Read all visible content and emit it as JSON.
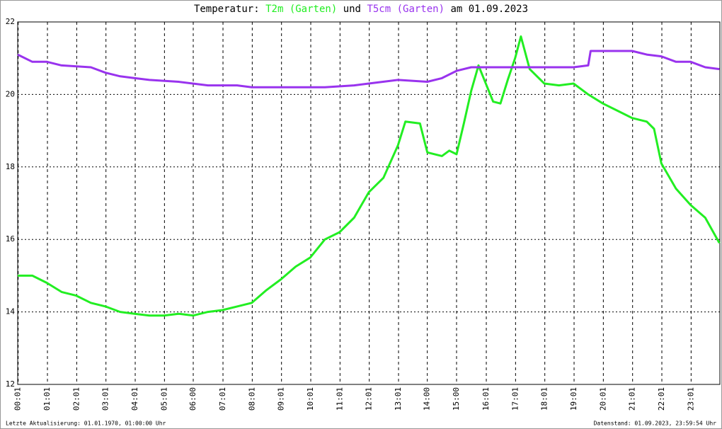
{
  "chart_data": {
    "type": "line",
    "title_prefix": "Temperatur:",
    "title_joiner": "und",
    "title_date": "am 01.09.2023",
    "footer_left": "Letzte Aktualisierung: 01.01.1970, 01:00:00 Uhr",
    "footer_right": "Datenstand: 01.09.2023, 23:59:54 Uhr",
    "xlim": [
      "00:00",
      "24:00"
    ],
    "xticks": [
      "00:01",
      "01:01",
      "02:01",
      "03:01",
      "04:01",
      "05:01",
      "06:00",
      "07:01",
      "08:01",
      "09:01",
      "10:01",
      "11:01",
      "12:01",
      "13:01",
      "14:00",
      "15:00",
      "16:01",
      "17:01",
      "18:01",
      "19:01",
      "20:01",
      "21:01",
      "22:01",
      "23:01"
    ],
    "ylim": [
      12,
      22
    ],
    "yticks": [
      12,
      14,
      16,
      18,
      20,
      22
    ],
    "grid": true,
    "series": [
      {
        "name": "T2m (Garten)",
        "color": "#22ee22",
        "x": [
          "00:00",
          "00:30",
          "01:00",
          "01:30",
          "02:00",
          "02:30",
          "03:00",
          "03:30",
          "04:00",
          "04:30",
          "05:00",
          "05:30",
          "06:00",
          "06:30",
          "07:00",
          "07:30",
          "08:00",
          "08:30",
          "09:00",
          "09:30",
          "10:00",
          "10:30",
          "11:00",
          "11:30",
          "12:00",
          "12:30",
          "13:00",
          "13:15",
          "13:45",
          "14:00",
          "14:30",
          "14:45",
          "15:00",
          "15:15",
          "15:30",
          "15:45",
          "16:00",
          "16:15",
          "16:30",
          "16:45",
          "17:00",
          "17:12",
          "17:30",
          "18:00",
          "18:30",
          "19:00",
          "19:30",
          "20:00",
          "20:30",
          "21:00",
          "21:30",
          "21:45",
          "22:00",
          "22:30",
          "23:00",
          "23:30",
          "23:59"
        ],
        "values": [
          15.0,
          15.0,
          14.8,
          14.55,
          14.45,
          14.25,
          14.15,
          14.0,
          13.95,
          13.9,
          13.9,
          13.95,
          13.9,
          14.0,
          14.05,
          14.15,
          14.25,
          14.6,
          14.9,
          15.25,
          15.5,
          16.0,
          16.2,
          16.6,
          17.3,
          17.7,
          18.6,
          19.25,
          19.2,
          18.4,
          18.3,
          18.45,
          18.35,
          19.2,
          20.1,
          20.8,
          20.3,
          19.8,
          19.75,
          20.4,
          21.0,
          21.6,
          20.7,
          20.3,
          20.25,
          20.3,
          20.0,
          19.75,
          19.55,
          19.35,
          19.25,
          19.05,
          18.1,
          17.4,
          16.95,
          16.6,
          15.9
        ]
      },
      {
        "name": "T5cm (Garten)",
        "color": "#9933ee",
        "x": [
          "00:00",
          "00:30",
          "01:00",
          "01:30",
          "02:30",
          "03:00",
          "03:30",
          "04:00",
          "04:30",
          "05:30",
          "06:30",
          "07:30",
          "08:00",
          "09:00",
          "10:30",
          "11:30",
          "12:00",
          "13:00",
          "14:00",
          "14:30",
          "15:00",
          "15:30",
          "16:00",
          "17:00",
          "17:30",
          "18:00",
          "19:00",
          "19:30",
          "19:35",
          "20:00",
          "21:00",
          "21:30",
          "22:00",
          "22:30",
          "23:00",
          "23:30",
          "23:59"
        ],
        "values": [
          21.1,
          20.9,
          20.9,
          20.8,
          20.75,
          20.6,
          20.5,
          20.45,
          20.4,
          20.35,
          20.25,
          20.25,
          20.2,
          20.2,
          20.2,
          20.25,
          20.3,
          20.4,
          20.35,
          20.45,
          20.65,
          20.75,
          20.75,
          20.75,
          20.75,
          20.75,
          20.75,
          20.8,
          21.2,
          21.2,
          21.2,
          21.1,
          21.05,
          20.9,
          20.9,
          20.75,
          20.7
        ]
      }
    ]
  }
}
